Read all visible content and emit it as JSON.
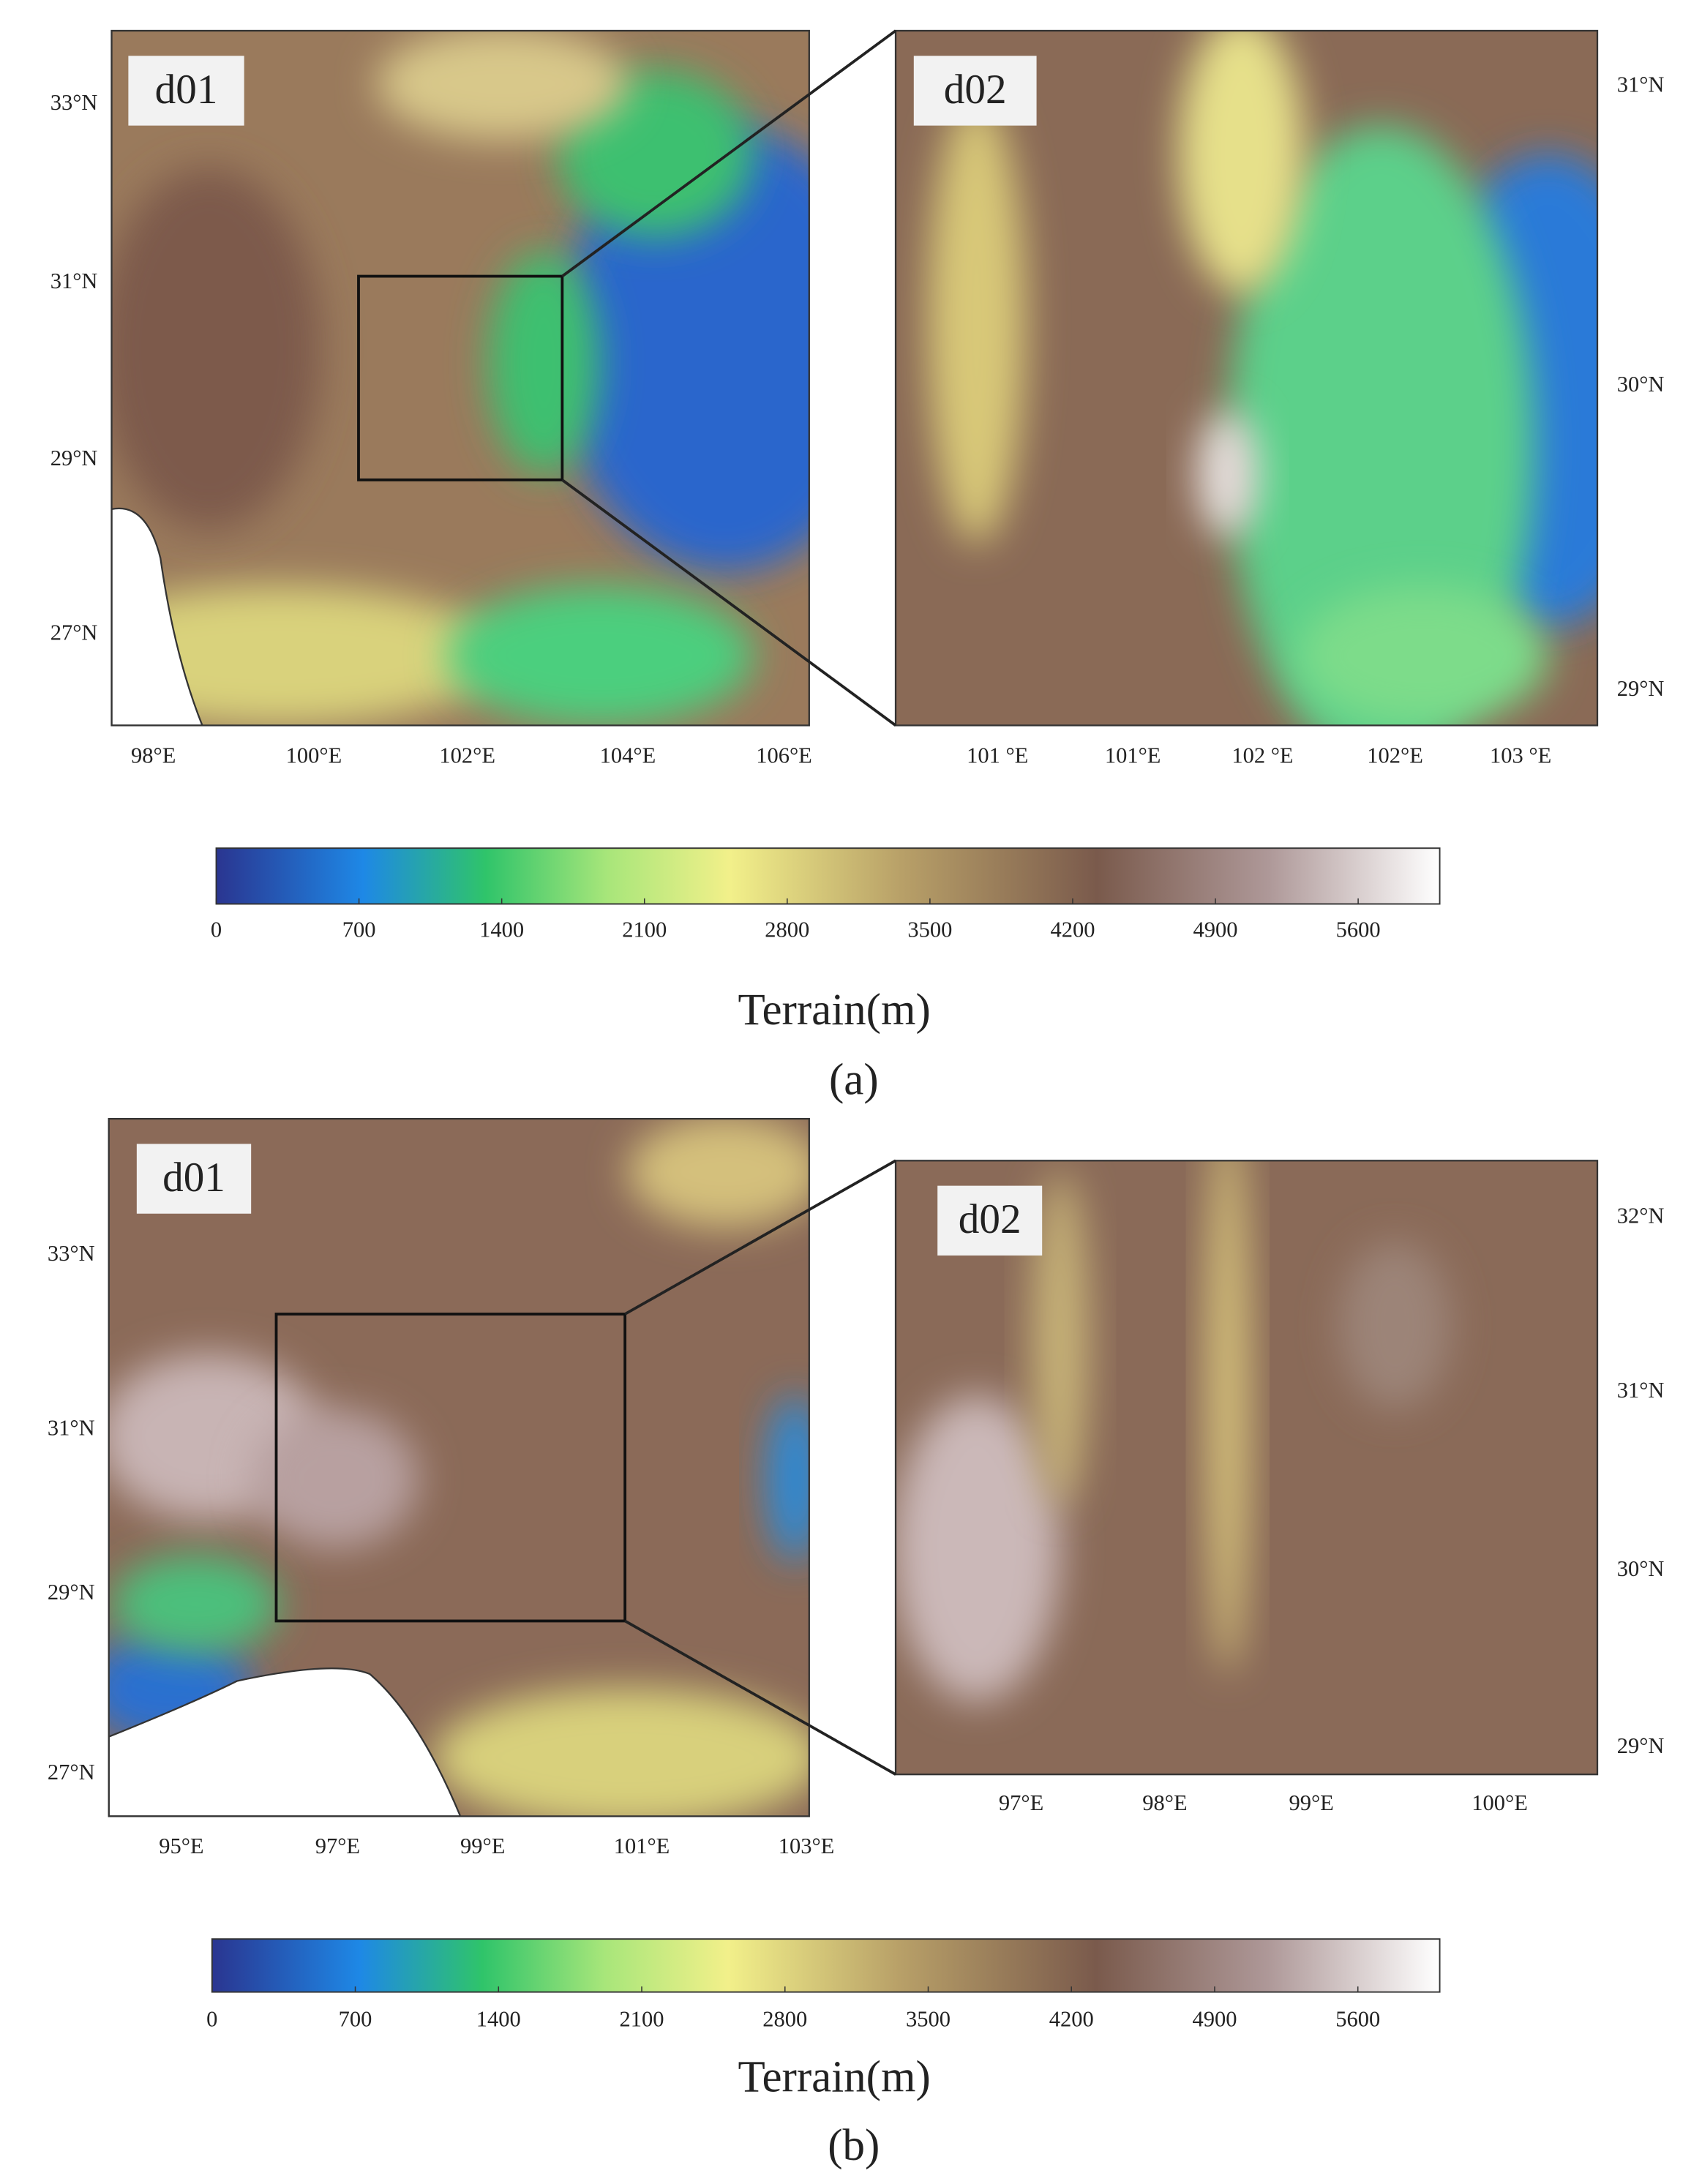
{
  "panels": [
    {
      "caption": "(a)",
      "maps": [
        {
          "label": "d01",
          "xticks": [
            "98°E",
            "100°E",
            "102°E",
            "104°E",
            "106°E"
          ],
          "yticks": [
            "33°N",
            "31°N",
            "29°N",
            "27°N"
          ]
        },
        {
          "label": "d02",
          "xticks": [
            "101 °E",
            "101°E",
            "102 °E",
            "102°E",
            "103 °E"
          ],
          "yticks": [
            "31°N",
            "30°N",
            "29°N"
          ]
        }
      ],
      "colorbar": {
        "label": "Terrain(m)",
        "lim": [
          0,
          6000
        ],
        "ticks": [
          0,
          700,
          1400,
          2100,
          2800,
          3500,
          4200,
          4900,
          5600
        ]
      }
    },
    {
      "caption": "(b)",
      "maps": [
        {
          "label": "d01",
          "xticks": [
            "95°E",
            "97°E",
            "99°E",
            "101°E",
            "103°E"
          ],
          "yticks": [
            "33°N",
            "31°N",
            "29°N",
            "27°N"
          ]
        },
        {
          "label": "d02",
          "xticks": [
            "97°E",
            "98°E",
            "99°E",
            "100°E"
          ],
          "yticks": [
            "32°N",
            "31°N",
            "30°N",
            "29°N"
          ]
        }
      ],
      "colorbar": {
        "label": "Terrain(m)",
        "lim": [
          0,
          6000
        ],
        "ticks": [
          0,
          700,
          1400,
          2100,
          2800,
          3500,
          4200,
          4900,
          5600
        ]
      }
    }
  ]
}
